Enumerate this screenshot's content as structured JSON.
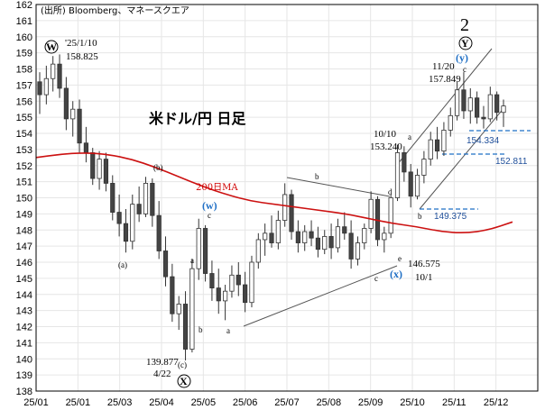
{
  "chart_data": {
    "type": "candlestick",
    "source": "(出所) Bloomberg、マネースクエア",
    "title": "米ドル/円 日足",
    "ylim": [
      138,
      162
    ],
    "yticks": [
      138,
      139,
      140,
      141,
      142,
      143,
      144,
      145,
      146,
      147,
      148,
      149,
      150,
      151,
      152,
      153,
      154,
      155,
      156,
      157,
      158,
      159,
      160,
      161,
      162
    ],
    "xticks": [
      "25/01",
      "25/01",
      "25/03",
      "25/04",
      "25/05",
      "25/06",
      "25/07",
      "25/08",
      "25/09",
      "25/10",
      "25/11",
      "25/12"
    ],
    "ma_label": "200日MA",
    "ma_values": [
      152.5,
      152.7,
      152.8,
      152.7,
      152.4,
      151.9,
      151.3,
      150.7,
      150.2,
      149.8,
      149.6,
      149.4,
      149.2,
      149.0,
      148.7,
      148.4,
      148.2,
      147.9,
      147.8,
      148.0,
      148.5
    ],
    "candles": [
      [
        157.2,
        157.8,
        155.2,
        156.4
      ],
      [
        156.4,
        158.2,
        155.8,
        157.4
      ],
      [
        157.4,
        158.8,
        156.6,
        158.3
      ],
      [
        158.3,
        158.9,
        156.2,
        156.8
      ],
      [
        156.8,
        157.5,
        154.2,
        154.9
      ],
      [
        154.9,
        156.0,
        153.8,
        155.5
      ],
      [
        155.5,
        156.1,
        152.8,
        153.4
      ],
      [
        153.4,
        154.4,
        152.2,
        152.8
      ],
      [
        152.8,
        153.1,
        150.8,
        151.2
      ],
      [
        151.2,
        152.9,
        150.5,
        152.4
      ],
      [
        152.4,
        152.8,
        150.4,
        150.9
      ],
      [
        150.9,
        151.4,
        148.6,
        149.1
      ],
      [
        149.1,
        150.2,
        147.6,
        148.4
      ],
      [
        148.4,
        149.3,
        146.6,
        147.3
      ],
      [
        147.3,
        150.2,
        146.8,
        149.6
      ],
      [
        149.6,
        150.7,
        148.5,
        149.0
      ],
      [
        149.0,
        151.3,
        148.8,
        150.9
      ],
      [
        150.9,
        151.2,
        148.2,
        148.9
      ],
      [
        148.9,
        149.8,
        146.2,
        146.7
      ],
      [
        146.7,
        147.6,
        144.5,
        145.1
      ],
      [
        145.1,
        145.9,
        142.3,
        142.8
      ],
      [
        142.8,
        143.9,
        141.8,
        143.4
      ],
      [
        143.4,
        144.2,
        139.9,
        140.6
      ],
      [
        140.6,
        146.2,
        140.4,
        145.6
      ],
      [
        145.6,
        148.7,
        144.9,
        148.1
      ],
      [
        148.1,
        148.3,
        144.8,
        145.3
      ],
      [
        145.3,
        146.1,
        143.6,
        144.4
      ],
      [
        144.4,
        145.6,
        142.8,
        143.6
      ],
      [
        143.6,
        144.6,
        142.4,
        144.2
      ],
      [
        144.2,
        145.8,
        143.8,
        145.2
      ],
      [
        145.2,
        146.0,
        143.9,
        144.6
      ],
      [
        144.6,
        145.4,
        142.9,
        143.5
      ],
      [
        143.5,
        146.4,
        143.2,
        146.0
      ],
      [
        146.0,
        147.8,
        145.6,
        147.4
      ],
      [
        147.4,
        148.4,
        146.4,
        147.8
      ],
      [
        147.8,
        148.9,
        146.9,
        147.2
      ],
      [
        147.2,
        149.2,
        146.8,
        148.6
      ],
      [
        148.6,
        150.9,
        148.2,
        150.2
      ],
      [
        150.2,
        150.5,
        147.4,
        147.9
      ],
      [
        147.9,
        148.6,
        146.6,
        147.2
      ],
      [
        147.2,
        148.3,
        146.7,
        147.9
      ],
      [
        147.9,
        148.6,
        147.0,
        147.5
      ],
      [
        147.5,
        148.2,
        146.3,
        146.8
      ],
      [
        146.8,
        148.0,
        146.5,
        147.6
      ],
      [
        147.6,
        148.4,
        146.2,
        146.9
      ],
      [
        146.9,
        148.7,
        146.6,
        148.2
      ],
      [
        148.2,
        149.1,
        147.4,
        147.8
      ],
      [
        147.8,
        148.6,
        145.6,
        146.2
      ],
      [
        146.2,
        147.6,
        145.8,
        147.2
      ],
      [
        147.2,
        148.4,
        146.8,
        148.1
      ],
      [
        148.1,
        150.4,
        147.8,
        149.9
      ],
      [
        149.9,
        150.1,
        147.0,
        147.4
      ],
      [
        147.4,
        148.2,
        146.6,
        147.8
      ],
      [
        147.8,
        150.2,
        147.5,
        150.0
      ],
      [
        150.0,
        153.3,
        149.8,
        152.8
      ],
      [
        152.8,
        153.2,
        151.0,
        151.6
      ],
      [
        151.6,
        152.1,
        149.4,
        150.1
      ],
      [
        150.1,
        151.8,
        149.9,
        151.4
      ],
      [
        151.4,
        152.9,
        150.9,
        152.4
      ],
      [
        152.4,
        154.1,
        152.0,
        153.6
      ],
      [
        153.6,
        154.4,
        152.4,
        152.9
      ],
      [
        152.9,
        154.7,
        152.6,
        154.2
      ],
      [
        154.2,
        155.6,
        153.8,
        155.1
      ],
      [
        155.1,
        157.2,
        154.8,
        156.7
      ],
      [
        156.7,
        157.8,
        154.9,
        155.4
      ],
      [
        155.4,
        156.8,
        154.6,
        156.2
      ],
      [
        156.2,
        156.6,
        154.6,
        155.0
      ],
      [
        155.0,
        155.7,
        154.3,
        154.9
      ],
      [
        154.9,
        156.9,
        154.7,
        156.4
      ],
      [
        156.4,
        156.6,
        154.8,
        155.3
      ],
      [
        155.3,
        156.1,
        154.4,
        155.7
      ]
    ],
    "labels": {
      "w_label": "W",
      "w_date": "'25/1/10",
      "w_price": "158.825",
      "x_label": "X",
      "x_price": "139.877",
      "x_date": "4/22",
      "oct_date": "10/10",
      "oct_price": "153.240",
      "oct1_price": "146.575",
      "oct1_date": "10/1",
      "nov_date": "11/20",
      "nov_price": "157.849",
      "wave2": "2",
      "y_label": "Y",
      "blue_w": "(w)",
      "blue_x": "(x)",
      "blue_y": "(y)",
      "lvl1": "154.334",
      "lvl2": "152.811",
      "lvl3": "149.375",
      "a1": "(a)",
      "b1": "(b)",
      "c1": "(c)",
      "a2": "a",
      "b2": "b",
      "c2": "c",
      "a3": "a",
      "b3": "b",
      "c3": "c",
      "d3": "d",
      "e3": "e",
      "a4": "a",
      "b4": "b",
      "c4": "c"
    }
  }
}
